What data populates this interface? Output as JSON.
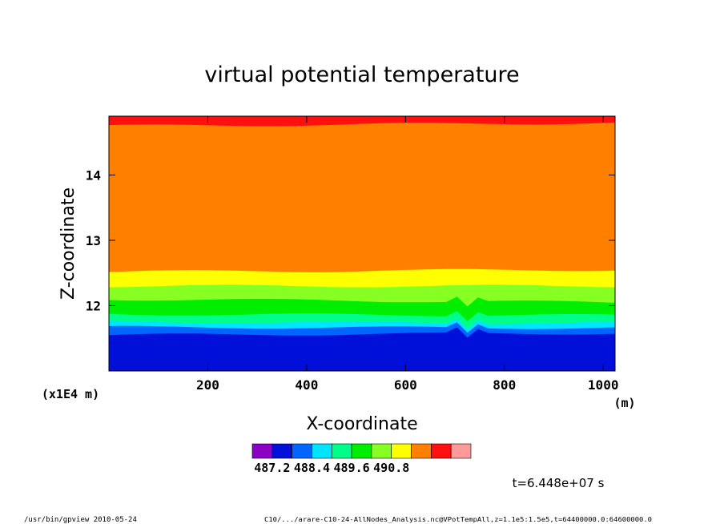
{
  "chart_data": {
    "type": "heatmap",
    "title": "virtual potential temperature",
    "xlabel": "X-coordinate",
    "ylabel": "Z-coordinate",
    "x_unit": "(m)",
    "y_scale_note": "(x1E4 m)",
    "xlim": [
      0,
      1024
    ],
    "ylim": [
      11.0,
      14.9
    ],
    "x_ticks": [
      "200",
      "400",
      "600",
      "800",
      "1000"
    ],
    "x_tick_values": [
      200,
      400,
      600,
      800,
      1000
    ],
    "y_ticks": [
      "12",
      "13",
      "14"
    ],
    "y_tick_values": [
      12,
      13,
      14
    ],
    "colorbar": {
      "colors": [
        "#8a00c6",
        "#0010d8",
        "#0066ff",
        "#00e5ff",
        "#00ff88",
        "#00ee00",
        "#88ff22",
        "#ffff00",
        "#ff8000",
        "#ff1010",
        "#ff9a9a"
      ],
      "tick_labels": [
        "487.2",
        "488.4",
        "489.6",
        "490.8"
      ],
      "tick_values": [
        487.2,
        488.4,
        489.6,
        490.8
      ]
    },
    "band_boundaries": [
      {
        "z_left": 11.55,
        "z_right": 11.58
      },
      {
        "z_left": 11.67,
        "z_right": 11.66
      },
      {
        "z_left": 11.75,
        "z_right": 11.73
      },
      {
        "z_left": 11.87,
        "z_right": 11.85
      },
      {
        "z_left": 12.1,
        "z_right": 12.05
      },
      {
        "z_left": 12.3,
        "z_right": 12.3
      },
      {
        "z_left": 12.52,
        "z_right": 12.55
      },
      {
        "z_left": 14.75,
        "z_right": 14.8
      }
    ],
    "time_label": "t=6.448e+07 s"
  },
  "footer": {
    "left": "/usr/bin/gpview  2010-05-24",
    "right": "C10/.../arare-C10-24-AllNodes_Analysis.nc@VPotTempAll,z=1.1e5:1.5e5,t=64400000.0:64600000.0"
  }
}
